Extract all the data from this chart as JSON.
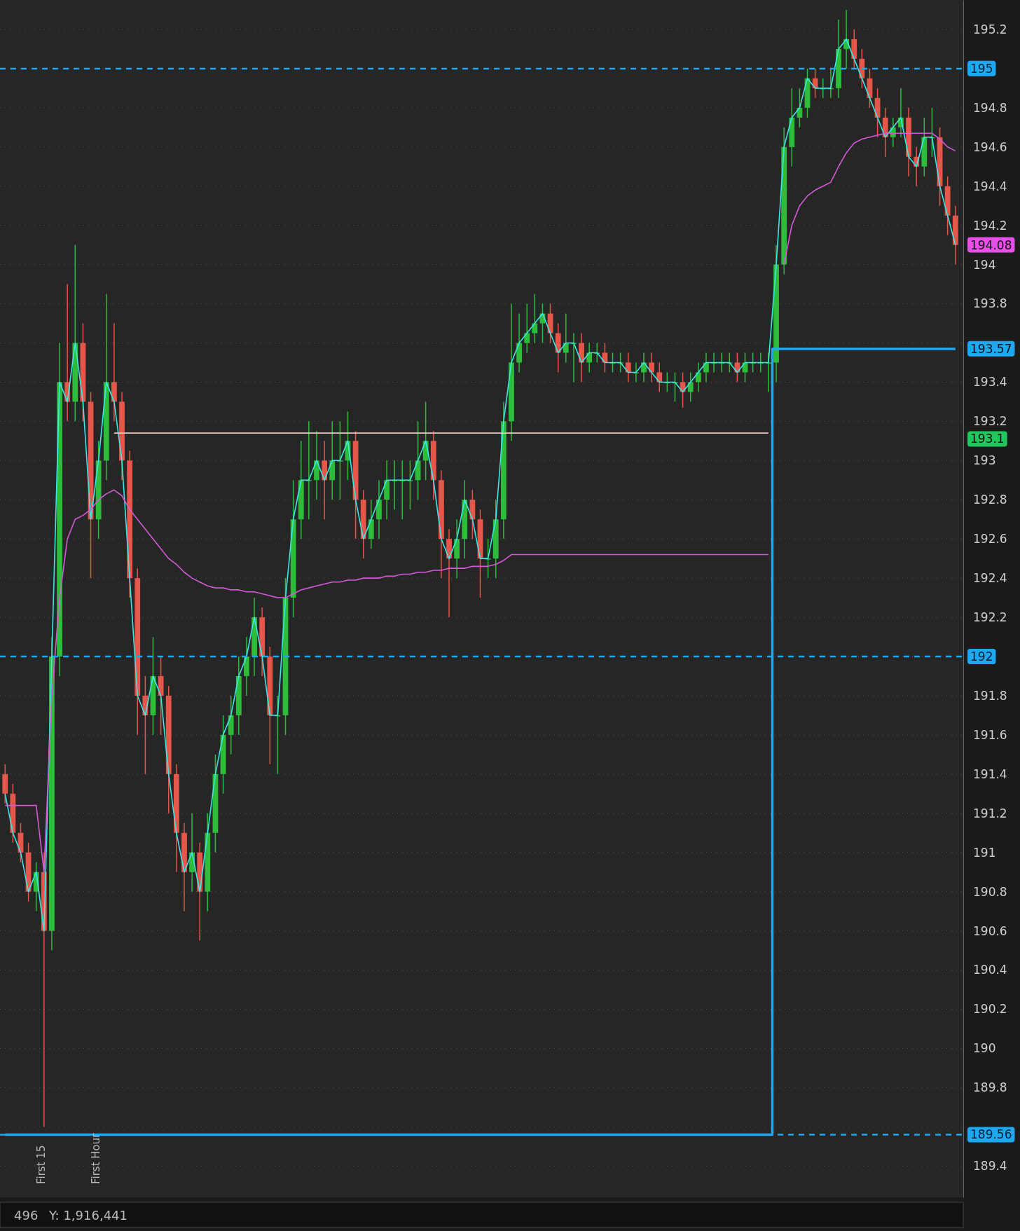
{
  "chart_data": {
    "type": "candlestick",
    "categories": [
      null,
      null,
      null,
      null,
      null,
      null,
      null,
      null,
      null,
      null,
      null,
      null,
      null,
      null,
      null,
      null,
      null,
      null,
      null,
      null,
      null,
      null,
      null,
      null,
      null,
      null,
      null,
      null,
      null,
      null,
      null,
      null,
      null,
      null,
      null,
      null,
      null,
      null,
      null,
      null,
      null,
      null,
      null,
      null,
      null,
      null,
      null,
      null,
      null,
      null,
      null,
      null,
      null,
      null,
      null,
      null,
      null,
      null,
      null,
      null,
      null,
      null,
      null,
      null,
      null,
      null,
      null,
      null,
      null,
      null,
      null,
      null,
      null,
      null,
      null,
      null,
      null,
      null,
      null,
      null,
      null,
      null,
      null,
      null,
      null,
      null,
      null,
      null,
      null,
      null,
      null,
      null,
      null,
      null,
      null,
      null,
      null,
      null,
      null,
      null,
      null,
      null,
      null,
      null,
      null,
      null,
      null,
      null,
      null,
      null,
      null,
      null,
      null,
      null,
      null,
      null,
      null,
      null,
      null,
      null,
      null,
      null,
      null
    ],
    "ohlc": [
      [
        191.4,
        191.45,
        191.25,
        191.3
      ],
      [
        191.3,
        191.35,
        191.05,
        191.1
      ],
      [
        191.1,
        191.15,
        190.95,
        191.0
      ],
      [
        191.0,
        191.05,
        190.75,
        190.8
      ],
      [
        190.8,
        190.95,
        190.7,
        190.9
      ],
      [
        190.9,
        191.0,
        189.6,
        190.6
      ],
      [
        190.6,
        192.1,
        190.5,
        192.0
      ],
      [
        192.0,
        193.6,
        191.9,
        193.4
      ],
      [
        193.4,
        193.9,
        193.2,
        193.3
      ],
      [
        193.3,
        194.1,
        193.2,
        193.6
      ],
      [
        193.6,
        193.7,
        193.2,
        193.3
      ],
      [
        193.3,
        193.35,
        192.4,
        192.7
      ],
      [
        192.7,
        193.1,
        192.6,
        193.0
      ],
      [
        193.0,
        193.85,
        192.9,
        193.4
      ],
      [
        193.4,
        193.7,
        193.2,
        193.3
      ],
      [
        193.3,
        193.35,
        192.9,
        193.0
      ],
      [
        193.0,
        193.05,
        192.3,
        192.4
      ],
      [
        192.4,
        192.45,
        191.6,
        191.8
      ],
      [
        191.8,
        191.9,
        191.4,
        191.7
      ],
      [
        191.7,
        192.1,
        191.6,
        191.9
      ],
      [
        191.9,
        192.0,
        191.6,
        191.8
      ],
      [
        191.8,
        191.85,
        191.2,
        191.4
      ],
      [
        191.4,
        191.45,
        190.9,
        191.1
      ],
      [
        191.1,
        191.15,
        190.7,
        190.9
      ],
      [
        190.9,
        191.2,
        190.8,
        191.0
      ],
      [
        191.0,
        191.05,
        190.55,
        190.8
      ],
      [
        190.8,
        191.2,
        190.7,
        191.1
      ],
      [
        191.1,
        191.5,
        191.0,
        191.4
      ],
      [
        191.4,
        191.7,
        191.3,
        191.6
      ],
      [
        191.6,
        191.8,
        191.5,
        191.7
      ],
      [
        191.7,
        192.0,
        191.6,
        191.9
      ],
      [
        191.9,
        192.1,
        191.8,
        192.0
      ],
      [
        192.0,
        192.3,
        191.9,
        192.2
      ],
      [
        192.2,
        192.25,
        191.9,
        192.0
      ],
      [
        192.0,
        192.05,
        191.45,
        191.7
      ],
      [
        191.7,
        191.8,
        191.4,
        191.7
      ],
      [
        191.7,
        192.4,
        191.6,
        192.3
      ],
      [
        192.3,
        192.9,
        192.2,
        192.7
      ],
      [
        192.7,
        193.1,
        192.6,
        192.9
      ],
      [
        192.9,
        193.2,
        192.7,
        192.9
      ],
      [
        192.9,
        193.15,
        192.8,
        193.0
      ],
      [
        193.0,
        193.1,
        192.7,
        192.9
      ],
      [
        192.9,
        193.2,
        192.8,
        193.0
      ],
      [
        193.0,
        193.2,
        192.8,
        193.0
      ],
      [
        193.0,
        193.25,
        192.9,
        193.1
      ],
      [
        193.1,
        193.15,
        192.6,
        192.8
      ],
      [
        192.8,
        192.85,
        192.5,
        192.6
      ],
      [
        192.6,
        192.8,
        192.55,
        192.7
      ],
      [
        192.7,
        192.9,
        192.6,
        192.8
      ],
      [
        192.8,
        193.0,
        192.7,
        192.9
      ],
      [
        192.9,
        193.0,
        192.75,
        192.9
      ],
      [
        192.9,
        193.0,
        192.7,
        192.9
      ],
      [
        192.9,
        193.0,
        192.75,
        192.9
      ],
      [
        192.9,
        193.2,
        192.8,
        193.0
      ],
      [
        193.0,
        193.3,
        192.9,
        193.1
      ],
      [
        193.1,
        193.15,
        192.8,
        192.9
      ],
      [
        192.9,
        192.95,
        192.4,
        192.6
      ],
      [
        192.6,
        192.65,
        192.2,
        192.5
      ],
      [
        192.5,
        192.7,
        192.4,
        192.6
      ],
      [
        192.6,
        192.9,
        192.5,
        192.8
      ],
      [
        192.8,
        192.85,
        192.6,
        192.7
      ],
      [
        192.7,
        192.75,
        192.3,
        192.5
      ],
      [
        192.5,
        192.6,
        192.4,
        192.5
      ],
      [
        192.5,
        192.8,
        192.4,
        192.7
      ],
      [
        192.7,
        193.3,
        192.6,
        193.2
      ],
      [
        193.2,
        193.8,
        193.1,
        193.5
      ],
      [
        193.5,
        193.75,
        193.45,
        193.6
      ],
      [
        193.6,
        193.8,
        193.55,
        193.65
      ],
      [
        193.65,
        193.85,
        193.6,
        193.7
      ],
      [
        193.7,
        193.8,
        193.6,
        193.75
      ],
      [
        193.75,
        193.8,
        193.6,
        193.65
      ],
      [
        193.65,
        193.7,
        193.45,
        193.55
      ],
      [
        193.55,
        193.75,
        193.5,
        193.6
      ],
      [
        193.6,
        193.65,
        193.4,
        193.6
      ],
      [
        193.6,
        193.65,
        193.4,
        193.5
      ],
      [
        193.5,
        193.6,
        193.45,
        193.55
      ],
      [
        193.55,
        193.6,
        193.5,
        193.55
      ],
      [
        193.55,
        193.6,
        193.45,
        193.5
      ],
      [
        193.5,
        193.55,
        193.45,
        193.5
      ],
      [
        193.5,
        193.55,
        193.45,
        193.5
      ],
      [
        193.5,
        193.55,
        193.4,
        193.45
      ],
      [
        193.45,
        193.5,
        193.4,
        193.45
      ],
      [
        193.45,
        193.55,
        193.4,
        193.5
      ],
      [
        193.5,
        193.55,
        193.4,
        193.45
      ],
      [
        193.45,
        193.5,
        193.35,
        193.4
      ],
      [
        193.4,
        193.45,
        193.35,
        193.4
      ],
      [
        193.4,
        193.45,
        193.3,
        193.4
      ],
      [
        193.4,
        193.45,
        193.27,
        193.35
      ],
      [
        193.35,
        193.45,
        193.3,
        193.4
      ],
      [
        193.4,
        193.5,
        193.35,
        193.45
      ],
      [
        193.45,
        193.55,
        193.4,
        193.5
      ],
      [
        193.5,
        193.55,
        193.45,
        193.5
      ],
      [
        193.5,
        193.55,
        193.45,
        193.5
      ],
      [
        193.5,
        193.55,
        193.45,
        193.5
      ],
      [
        193.5,
        193.55,
        193.4,
        193.45
      ],
      [
        193.45,
        193.55,
        193.4,
        193.5
      ],
      [
        193.5,
        193.55,
        193.45,
        193.5
      ],
      [
        193.5,
        193.55,
        193.45,
        193.5
      ],
      [
        193.5,
        193.55,
        193.35,
        193.5
      ],
      [
        193.5,
        194.1,
        193.4,
        194.0
      ],
      [
        194.0,
        194.7,
        193.95,
        194.6
      ],
      [
        194.6,
        194.9,
        194.5,
        194.75
      ],
      [
        194.75,
        194.9,
        194.7,
        194.8
      ],
      [
        194.8,
        195.0,
        194.75,
        194.95
      ],
      [
        194.95,
        195.0,
        194.85,
        194.9
      ],
      [
        194.9,
        194.95,
        194.85,
        194.9
      ],
      [
        194.9,
        195.0,
        194.85,
        194.9
      ],
      [
        194.9,
        195.25,
        194.85,
        195.1
      ],
      [
        195.1,
        195.3,
        195.0,
        195.15
      ],
      [
        195.15,
        195.2,
        195.0,
        195.05
      ],
      [
        195.05,
        195.1,
        194.9,
        194.95
      ],
      [
        194.95,
        195.0,
        194.8,
        194.85
      ],
      [
        194.85,
        194.9,
        194.65,
        194.75
      ],
      [
        194.75,
        194.8,
        194.55,
        194.65
      ],
      [
        194.65,
        194.75,
        194.6,
        194.7
      ],
      [
        194.7,
        194.9,
        194.65,
        194.75
      ],
      [
        194.75,
        194.8,
        194.45,
        194.55
      ],
      [
        194.55,
        194.6,
        194.4,
        194.5
      ],
      [
        194.5,
        194.75,
        194.45,
        194.65
      ],
      [
        194.65,
        194.8,
        194.55,
        194.65
      ],
      [
        194.65,
        194.7,
        194.3,
        194.4
      ],
      [
        194.4,
        194.45,
        194.15,
        194.25
      ],
      [
        194.25,
        194.3,
        194.0,
        194.1
      ]
    ],
    "series": [
      {
        "type": "line",
        "color": "#3ee6e6",
        "values": [
          191.3,
          191.1,
          191.0,
          190.8,
          190.9,
          190.6,
          192.0,
          193.4,
          193.3,
          193.6,
          193.3,
          192.7,
          193.0,
          193.4,
          193.3,
          193.0,
          192.4,
          191.8,
          191.7,
          191.9,
          191.8,
          191.4,
          191.1,
          190.9,
          191.0,
          190.8,
          191.1,
          191.4,
          191.6,
          191.7,
          191.9,
          192.0,
          192.2,
          192.0,
          191.7,
          191.7,
          192.3,
          192.7,
          192.9,
          192.9,
          193.0,
          192.9,
          193.0,
          193.0,
          193.1,
          192.8,
          192.6,
          192.7,
          192.8,
          192.9,
          192.9,
          192.9,
          192.9,
          193.0,
          193.1,
          192.9,
          192.6,
          192.5,
          192.6,
          192.8,
          192.7,
          192.5,
          192.5,
          192.7,
          193.2,
          193.5,
          193.6,
          193.65,
          193.7,
          193.75,
          193.65,
          193.55,
          193.6,
          193.6,
          193.5,
          193.55,
          193.55,
          193.5,
          193.5,
          193.5,
          193.45,
          193.45,
          193.5,
          193.45,
          193.4,
          193.4,
          193.4,
          193.35,
          193.4,
          193.45,
          193.5,
          193.5,
          193.5,
          193.5,
          193.45,
          193.5,
          193.5,
          193.5,
          193.5,
          194.0,
          194.6,
          194.75,
          194.8,
          194.95,
          194.9,
          194.9,
          194.9,
          195.1,
          195.15,
          195.05,
          194.95,
          194.85,
          194.75,
          194.65,
          194.7,
          194.75,
          194.55,
          194.5,
          194.65,
          194.65,
          194.4,
          194.25,
          194.1
        ]
      },
      {
        "type": "line",
        "color": "#d45ad8",
        "values": [
          191.24,
          191.24,
          191.24,
          191.24,
          191.24,
          190.9,
          191.8,
          192.3,
          192.6,
          192.7,
          192.72,
          192.75,
          192.8,
          192.83,
          192.85,
          192.82,
          192.75,
          192.7,
          192.65,
          192.6,
          192.55,
          192.5,
          192.47,
          192.43,
          192.4,
          192.38,
          192.36,
          192.35,
          192.35,
          192.34,
          192.34,
          192.33,
          192.33,
          192.32,
          192.31,
          192.3,
          192.3,
          192.32,
          192.34,
          192.35,
          192.36,
          192.37,
          192.38,
          192.38,
          192.39,
          192.39,
          192.4,
          192.4,
          192.4,
          192.41,
          192.41,
          192.42,
          192.42,
          192.43,
          192.43,
          192.44,
          192.44,
          192.45,
          192.45,
          192.45,
          192.46,
          192.46,
          192.46,
          192.47,
          192.49,
          192.52,
          192.52,
          192.52,
          192.52,
          192.52,
          192.52,
          192.52,
          192.52,
          192.52,
          192.52,
          192.52,
          192.52,
          192.52,
          192.52,
          192.52,
          192.52,
          192.52,
          192.52,
          192.52,
          192.52,
          192.52,
          192.52,
          192.52,
          192.52,
          192.52,
          192.52,
          192.52,
          192.52,
          192.52,
          192.52,
          192.52,
          192.52,
          192.52,
          192.52,
          null,
          194.0,
          194.2,
          194.3,
          194.35,
          194.38,
          194.4,
          194.42,
          194.5,
          194.57,
          194.62,
          194.64,
          194.65,
          194.66,
          194.67,
          194.67,
          194.67,
          194.67,
          194.67,
          194.67,
          194.67,
          194.64,
          194.6,
          194.58
        ]
      },
      {
        "type": "step",
        "color": "#1ea8f0",
        "values": [
          189.56,
          189.56,
          189.56,
          189.56,
          189.56,
          189.56,
          189.56,
          189.56,
          189.56,
          189.56,
          189.56,
          189.56,
          189.56,
          189.56,
          189.56,
          189.56,
          189.56,
          189.56,
          189.56,
          189.56,
          189.56,
          189.56,
          189.56,
          189.56,
          189.56,
          189.56,
          189.56,
          189.56,
          189.56,
          189.56,
          189.56,
          189.56,
          189.56,
          189.56,
          189.56,
          189.56,
          189.56,
          189.56,
          189.56,
          189.56,
          189.56,
          189.56,
          189.56,
          189.56,
          189.56,
          189.56,
          189.56,
          189.56,
          189.56,
          189.56,
          189.56,
          189.56,
          189.56,
          189.56,
          189.56,
          189.56,
          189.56,
          189.56,
          189.56,
          189.56,
          189.56,
          189.56,
          189.56,
          189.56,
          189.56,
          189.56,
          189.56,
          189.56,
          189.56,
          189.56,
          189.56,
          189.56,
          189.56,
          189.56,
          189.56,
          189.56,
          189.56,
          189.56,
          189.56,
          189.56,
          189.56,
          189.56,
          189.56,
          189.56,
          189.56,
          189.56,
          189.56,
          189.56,
          189.56,
          189.56,
          189.56,
          189.56,
          189.56,
          189.56,
          189.56,
          189.56,
          189.56,
          189.56,
          189.56,
          193.57,
          193.57,
          193.57,
          193.57,
          193.57,
          193.57,
          193.57,
          193.57,
          193.57,
          193.57,
          193.57,
          193.57,
          193.57,
          193.57,
          193.57,
          193.57,
          193.57,
          193.57,
          193.57,
          193.57,
          193.57,
          193.57,
          193.57,
          193.57
        ]
      },
      {
        "type": "line",
        "color": "#f0c4c0",
        "values": [
          null,
          null,
          null,
          null,
          null,
          null,
          null,
          null,
          null,
          null,
          null,
          null,
          null,
          null,
          193.14,
          193.14,
          193.14,
          193.14,
          193.14,
          193.14,
          193.14,
          193.14,
          193.14,
          193.14,
          193.14,
          193.14,
          193.14,
          193.14,
          193.14,
          193.14,
          193.14,
          193.14,
          193.14,
          193.14,
          193.14,
          193.14,
          193.14,
          193.14,
          193.14,
          193.14,
          193.14,
          193.14,
          193.14,
          193.14,
          193.14,
          193.14,
          193.14,
          193.14,
          193.14,
          193.14,
          193.14,
          193.14,
          193.14,
          193.14,
          193.14,
          193.14,
          193.14,
          193.14,
          193.14,
          193.14,
          193.14,
          193.14,
          193.14,
          193.14,
          193.14,
          193.14,
          193.14,
          193.14,
          193.14,
          193.14,
          193.14,
          193.14,
          193.14,
          193.14,
          193.14,
          193.14,
          193.14,
          193.14,
          193.14,
          193.14,
          193.14,
          193.14,
          193.14,
          193.14,
          193.14,
          193.14,
          193.14,
          193.14,
          193.14,
          193.14,
          193.14,
          193.14,
          193.14,
          193.14,
          193.14,
          193.14,
          193.14,
          193.14,
          193.14,
          null,
          null,
          null,
          null,
          null,
          null,
          null,
          null,
          null,
          null,
          null,
          null,
          null,
          null,
          null,
          null,
          null,
          null,
          null,
          null,
          null,
          null,
          null,
          null
        ]
      }
    ],
    "ylim": [
      189.24,
      195.35
    ],
    "yticks": [
      189.4,
      {
        "value": 189.6,
        "label": null
      },
      189.8,
      190,
      190.2,
      190.4,
      190.6,
      190.8,
      191,
      191.2,
      191.4,
      191.6,
      191.8,
      192,
      192.2,
      192.4,
      192.6,
      192.8,
      193,
      193.2,
      193.4,
      {
        "value": 193.6,
        "label": null
      },
      193.8,
      194,
      194.2,
      194.4,
      194.6,
      194.8,
      195,
      195.2
    ],
    "grid": "y",
    "ref_lines": [
      {
        "axis": "y",
        "value": 195,
        "label": "195",
        "color": "#1ea8f0",
        "line_style": "dashed"
      },
      {
        "axis": "y",
        "value": 192,
        "label": "192",
        "color": "#1ea8f0",
        "line_style": "dashed"
      },
      {
        "axis": "y",
        "value": 189.56,
        "label": "189.56",
        "color": "#1ea8f0",
        "line_style": "dashed"
      }
    ],
    "annotations": [
      "194.08",
      "193.57",
      "193.1",
      "First 15",
      "First Hour",
      "496",
      "Y: 1,916,441"
    ]
  }
}
